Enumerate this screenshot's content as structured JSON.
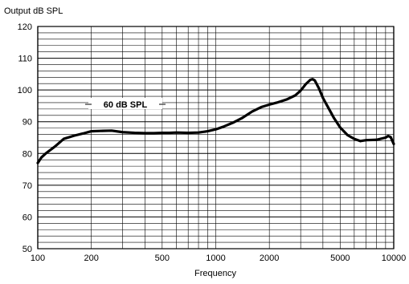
{
  "chart_data": {
    "type": "line",
    "title": "",
    "ylabel": "Output dB SPL",
    "xlabel": "Frequency",
    "x_scale": "log",
    "xlim": [
      100,
      10000
    ],
    "ylim": [
      50,
      120
    ],
    "grid": true,
    "x_ticks": [
      100,
      200,
      500,
      1000,
      2000,
      5000,
      10000
    ],
    "y_ticks": [
      50,
      60,
      70,
      80,
      90,
      100,
      110,
      120
    ],
    "annotation": "60 dB SPL",
    "series": [
      {
        "name": "",
        "x": [
          100,
          105,
          112,
          125,
          140,
          160,
          180,
          200,
          225,
          260,
          300,
          350,
          400,
          450,
          500,
          550,
          600,
          700,
          800,
          900,
          1000,
          1100,
          1250,
          1400,
          1600,
          1800,
          2000,
          2200,
          2500,
          2800,
          3000,
          3200,
          3400,
          3500,
          3600,
          3800,
          4000,
          4300,
          4600,
          5000,
          5500,
          6000,
          6500,
          7000,
          8000,
          9000,
          9300,
          9600,
          10000
        ],
        "y": [
          77,
          78.8,
          80.2,
          82.2,
          84.6,
          85.6,
          86.3,
          87,
          87.1,
          87.2,
          86.7,
          86.5,
          86.4,
          86.4,
          86.5,
          86.5,
          86.6,
          86.5,
          86.6,
          87,
          87.6,
          88.4,
          89.7,
          91.1,
          93.2,
          94.6,
          95.4,
          96,
          97,
          98.3,
          99.8,
          101.8,
          103.2,
          103.4,
          103,
          100.5,
          97.5,
          94.3,
          91.3,
          88.2,
          85.8,
          84.6,
          83.9,
          84.2,
          84.3,
          85,
          85.5,
          85.2,
          83
        ]
      }
    ]
  }
}
